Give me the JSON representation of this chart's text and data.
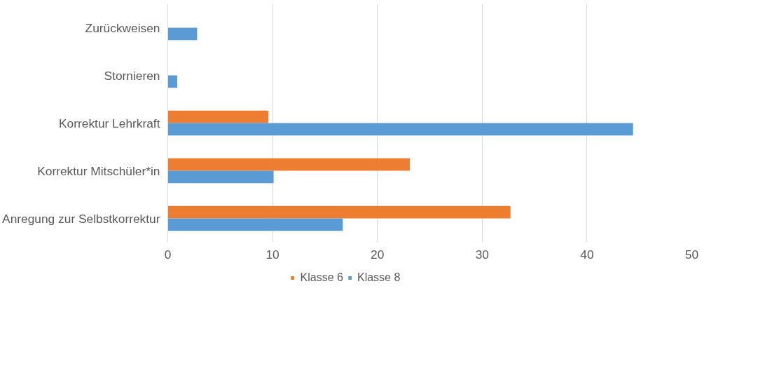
{
  "chart_data": {
    "type": "bar",
    "orientation": "horizontal",
    "categories": [
      "Zurückweisen",
      "Stornieren",
      "Korrektur Lehrkraft",
      "Korrektur Mitschüler*in",
      "Anregung zur Selbstkorrektur"
    ],
    "series": [
      {
        "name": "Klasse 6",
        "color": "#ed7d31",
        "values": [
          0,
          0,
          9.6,
          23.1,
          32.7
        ]
      },
      {
        "name": "Klasse 8",
        "color": "#5b9bd5",
        "values": [
          2.8,
          0.9,
          44.4,
          10.1,
          16.7
        ]
      }
    ],
    "xlim": [
      0,
      50
    ],
    "xticks": [
      0,
      10,
      20,
      30,
      40,
      50
    ],
    "grid": "x",
    "legend": "bottom"
  }
}
